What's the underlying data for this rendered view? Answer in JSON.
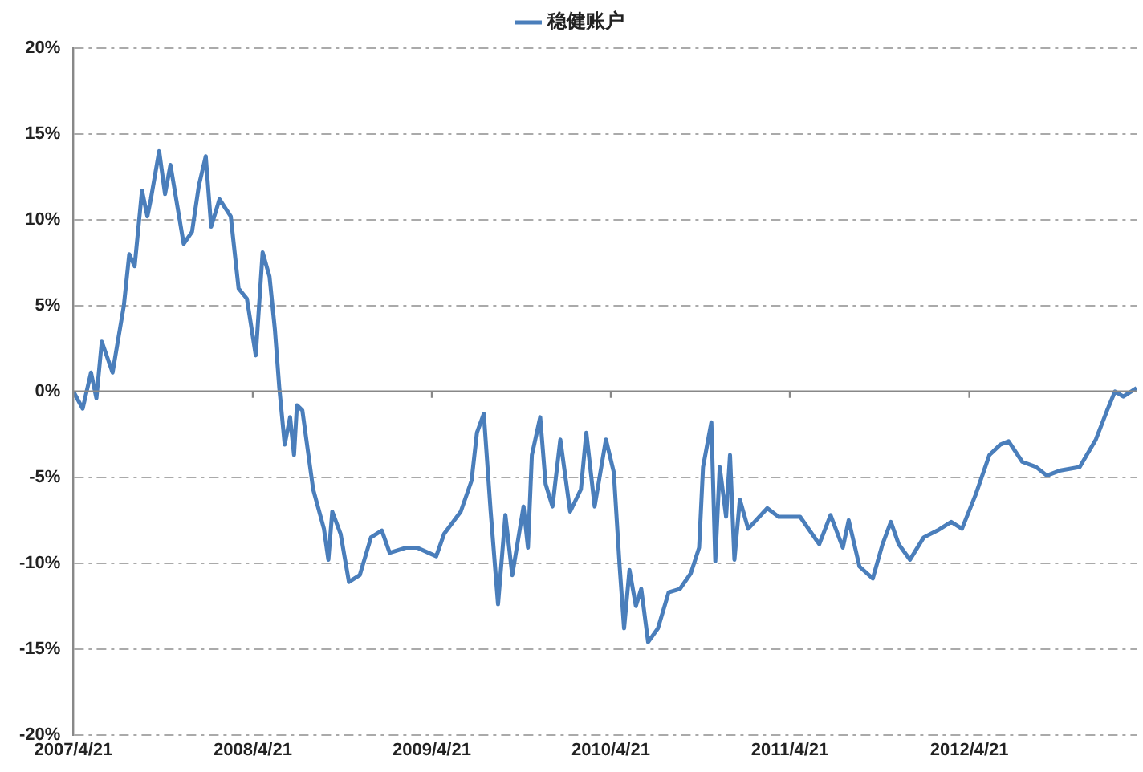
{
  "chart_data": {
    "type": "line",
    "legend": "top",
    "grid": "y",
    "marker": "none",
    "line_style": "solid",
    "xlim": [
      "2007-04-21",
      "2013-03-28"
    ],
    "xticks": [
      {
        "value": "2007-04-21",
        "label": "2007/4/21"
      },
      {
        "value": "2008-04-21",
        "label": "2008/4/21"
      },
      {
        "value": "2009-04-21",
        "label": "2009/4/21"
      },
      {
        "value": "2010-04-21",
        "label": "2010/4/21"
      },
      {
        "value": "2011-04-21",
        "label": "2011/4/21"
      },
      {
        "value": "2012-04-21",
        "label": "2012/4/21"
      }
    ],
    "ylim": [
      -20,
      20
    ],
    "yticks": [
      {
        "value": -20,
        "label": "-20%"
      },
      {
        "value": -15,
        "label": "-15%"
      },
      {
        "value": -10,
        "label": "-10%"
      },
      {
        "value": -5,
        "label": "-5%"
      },
      {
        "value": 0,
        "label": "0%"
      },
      {
        "value": 5,
        "label": "5%"
      },
      {
        "value": 10,
        "label": "10%"
      },
      {
        "value": 15,
        "label": "15%"
      },
      {
        "value": 20,
        "label": "20%"
      }
    ],
    "x": [
      "2007-04-21",
      "2007-05-10",
      "2007-05-27",
      "2007-06-07",
      "2007-06-18",
      "2007-07-10",
      "2007-08-02",
      "2007-08-13",
      "2007-08-24",
      "2007-09-08",
      "2007-09-19",
      "2007-09-26",
      "2007-10-13",
      "2007-10-25",
      "2007-11-05",
      "2007-12-02",
      "2007-12-19",
      "2008-01-02",
      "2008-01-16",
      "2008-01-27",
      "2008-02-13",
      "2008-03-07",
      "2008-03-23",
      "2008-04-09",
      "2008-04-27",
      "2008-05-11",
      "2008-05-25",
      "2008-06-05",
      "2008-06-14",
      "2008-06-25",
      "2008-07-06",
      "2008-07-14",
      "2008-07-20",
      "2008-07-31",
      "2008-08-11",
      "2008-08-22",
      "2008-09-13",
      "2008-09-22",
      "2008-09-30",
      "2008-10-17",
      "2008-11-03",
      "2008-11-25",
      "2008-12-18",
      "2009-01-09",
      "2009-01-25",
      "2009-02-28",
      "2009-03-22",
      "2009-04-30",
      "2009-05-16",
      "2009-06-19",
      "2009-07-11",
      "2009-07-22",
      "2009-08-05",
      "2009-08-19",
      "2009-09-03",
      "2009-09-18",
      "2009-10-02",
      "2009-10-25",
      "2009-11-03",
      "2009-11-11",
      "2009-11-28",
      "2009-12-09",
      "2009-12-23",
      "2010-01-08",
      "2010-01-28",
      "2010-02-19",
      "2010-03-02",
      "2010-03-19",
      "2010-04-11",
      "2010-04-27",
      "2010-05-09",
      "2010-05-18",
      "2010-05-29",
      "2010-06-11",
      "2010-06-22",
      "2010-07-06",
      "2010-07-26",
      "2010-08-17",
      "2010-09-09",
      "2010-10-01",
      "2010-10-18",
      "2010-10-26",
      "2010-11-12",
      "2010-11-20",
      "2010-11-29",
      "2010-12-12",
      "2010-12-20",
      "2010-12-29",
      "2011-01-09",
      "2011-01-26",
      "2011-03-06",
      "2011-03-29",
      "2011-05-12",
      "2011-06-20",
      "2011-07-13",
      "2011-08-07",
      "2011-08-19",
      "2011-09-10",
      "2011-10-07",
      "2011-10-27",
      "2011-11-13",
      "2011-11-29",
      "2011-12-22",
      "2012-01-19",
      "2012-02-16",
      "2012-03-15",
      "2012-04-06",
      "2012-05-04",
      "2012-06-01",
      "2012-06-23",
      "2012-07-10",
      "2012-08-07",
      "2012-09-04",
      "2012-09-26",
      "2012-10-24",
      "2012-12-02",
      "2013-01-04",
      "2013-01-27",
      "2013-02-12",
      "2013-03-01",
      "2013-03-28"
    ],
    "series": [
      {
        "name": "稳健账户",
        "color": "#4a7ebb",
        "values": [
          0,
          -1.0,
          1.1,
          -0.4,
          2.9,
          1.1,
          5.0,
          8.0,
          7.3,
          11.7,
          10.2,
          11.2,
          14.0,
          11.5,
          13.2,
          8.6,
          9.3,
          12.0,
          13.7,
          9.6,
          11.2,
          10.2,
          6.0,
          5.4,
          2.1,
          8.1,
          6.7,
          3.6,
          0.2,
          -3.1,
          -1.5,
          -3.7,
          -0.8,
          -1.1,
          -3.4,
          -5.7,
          -8.0,
          -9.8,
          -7.0,
          -8.3,
          -11.1,
          -10.7,
          -8.5,
          -8.1,
          -9.4,
          -9.1,
          -9.1,
          -9.6,
          -8.3,
          -7.0,
          -5.2,
          -2.4,
          -1.3,
          -7.0,
          -12.4,
          -7.2,
          -10.7,
          -6.7,
          -9.1,
          -3.7,
          -1.5,
          -5.4,
          -6.7,
          -2.8,
          -7.0,
          -5.7,
          -2.4,
          -6.7,
          -2.8,
          -4.7,
          -10.2,
          -13.8,
          -10.4,
          -12.5,
          -11.5,
          -14.6,
          -13.8,
          -11.7,
          -11.5,
          -10.6,
          -9.1,
          -4.4,
          -1.8,
          -9.9,
          -4.4,
          -7.3,
          -3.7,
          -9.8,
          -6.3,
          -8.0,
          -6.8,
          -7.3,
          -7.3,
          -8.9,
          -7.2,
          -9.1,
          -7.5,
          -10.2,
          -10.9,
          -8.9,
          -7.6,
          -8.9,
          -9.8,
          -8.5,
          -8.1,
          -7.6,
          -8.0,
          -6.0,
          -3.7,
          -3.1,
          -2.9,
          -4.1,
          -4.4,
          -4.9,
          -4.6,
          -4.4,
          -2.8,
          -1.1,
          0,
          -0.3,
          0.2
        ]
      }
    ]
  }
}
